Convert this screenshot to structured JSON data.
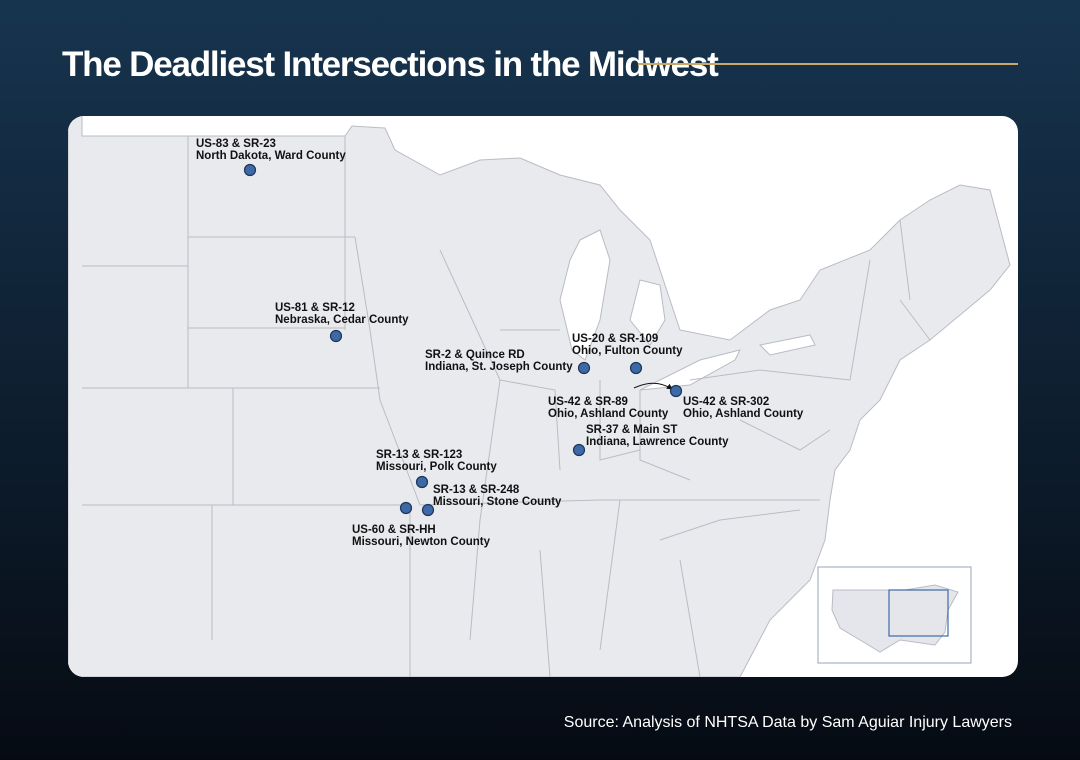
{
  "title": "The Deadliest Intersections in the Midwest",
  "source": "Source: Analysis of NHTSA Data by Sam Aguiar Injury Lawyers",
  "locations": [
    {
      "road": "US-83 & SR-23",
      "place": "North Dakota, Ward County"
    },
    {
      "road": "US-81 & SR-12",
      "place": "Nebraska, Cedar County"
    },
    {
      "road": "SR-2 & Quince RD",
      "place": "Indiana, St. Joseph County"
    },
    {
      "road": "US-20 & SR-109",
      "place": "Ohio, Fulton County"
    },
    {
      "road": "US-42 & SR-89",
      "place": "Ohio, Ashland County"
    },
    {
      "road": "US-42 & SR-302",
      "place": "Ohio, Ashland County"
    },
    {
      "road": "SR-37 & Main ST",
      "place": "Indiana, Lawrence County"
    },
    {
      "road": "SR-13 & SR-123",
      "place": "Missouri, Polk County"
    },
    {
      "road": "SR-13 & SR-248",
      "place": "Missouri, Stone County"
    },
    {
      "road": "US-60 & SR-HH",
      "place": "Missouri, Newton County"
    }
  ]
}
